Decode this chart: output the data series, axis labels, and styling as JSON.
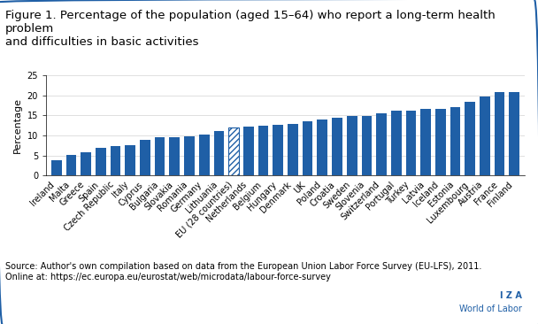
{
  "title": "Figure 1. Percentage of the population (aged 15–64) who report a long-term health problem\nand difficulties in basic activities",
  "ylabel": "Percentage",
  "categories": [
    "Ireland",
    "Malta",
    "Greece",
    "Spain",
    "Czech Republic",
    "Italy",
    "Cyprus",
    "Bulgaria",
    "Slovakia",
    "Romania",
    "Germany",
    "Lithuania",
    "EU (28 countries)",
    "Netherlands",
    "Belgium",
    "Hungary",
    "Denmark",
    "UK",
    "Poland",
    "Croatia",
    "Sweden",
    "Slovenia",
    "Switzerland",
    "Portugal",
    "Turkey",
    "Latvia",
    "Iceland",
    "Estonia",
    "Luxembourg",
    "Austria",
    "France",
    "Finland"
  ],
  "values": [
    3.9,
    5.2,
    5.8,
    6.9,
    7.4,
    7.6,
    9.0,
    9.5,
    9.6,
    9.8,
    10.2,
    11.2,
    12.0,
    12.3,
    12.5,
    12.6,
    12.8,
    13.5,
    14.0,
    14.5,
    14.9,
    14.9,
    15.6,
    16.1,
    16.2,
    16.6,
    16.7,
    17.0,
    18.4,
    19.6,
    20.7,
    20.8
  ],
  "bar_color": "#1F5FA6",
  "eu_bar_color": "#1F5FA6",
  "eu_index": 12,
  "ylim": [
    0,
    25
  ],
  "yticks": [
    0,
    5,
    10,
    15,
    20,
    25
  ],
  "source_text": "Source: Author's own compilation based on data from the European Union Labor Force Survey (EU-LFS), 2011.\nOnline at: https://ec.europa.eu/eurostat/web/microdata/labour-force-survey",
  "iza_text": "I Z A",
  "wol_text": "World of Labor",
  "border_color": "#1F5FA6",
  "title_fontsize": 9.5,
  "axis_fontsize": 8,
  "tick_fontsize": 7,
  "source_fontsize": 7
}
